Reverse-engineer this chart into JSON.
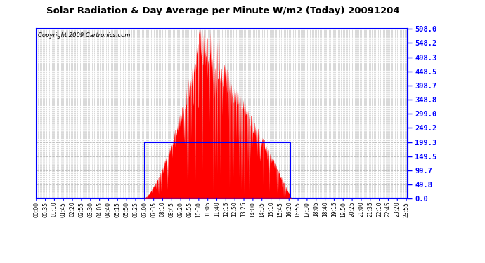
{
  "title": "Solar Radiation & Day Average per Minute W/m2 (Today) 20091204",
  "copyright_text": "Copyright 2009 Cartronics.com",
  "background_color": "#ffffff",
  "plot_bg_color": "#ffffff",
  "y_ticks": [
    0.0,
    49.8,
    99.7,
    149.5,
    199.3,
    249.2,
    299.0,
    348.8,
    398.7,
    448.5,
    498.3,
    548.2,
    598.0
  ],
  "y_min": 0.0,
  "y_max": 598.0,
  "x_min": 0,
  "x_max": 1439,
  "fill_color": "red",
  "border_color": "blue",
  "grid_color": "#bbbbbb",
  "rect_x1": 420,
  "rect_x2": 985,
  "rect_y2": 199.3,
  "solar_start": 415,
  "solar_peak": 635,
  "solar_end": 990,
  "x_tick_labels": [
    "00:00",
    "00:35",
    "01:10",
    "01:45",
    "02:20",
    "02:55",
    "03:30",
    "04:05",
    "04:40",
    "05:15",
    "05:50",
    "06:25",
    "07:00",
    "07:35",
    "08:10",
    "08:45",
    "09:20",
    "09:55",
    "10:30",
    "11:05",
    "11:40",
    "12:15",
    "12:50",
    "13:25",
    "14:00",
    "14:35",
    "15:10",
    "15:45",
    "16:20",
    "16:55",
    "17:30",
    "18:05",
    "18:40",
    "19:15",
    "19:50",
    "20:25",
    "21:00",
    "21:35",
    "22:10",
    "22:45",
    "23:20",
    "23:55"
  ],
  "x_tick_positions": [
    0,
    35,
    70,
    105,
    140,
    175,
    210,
    245,
    280,
    315,
    350,
    385,
    420,
    455,
    490,
    525,
    560,
    595,
    630,
    665,
    700,
    735,
    770,
    805,
    840,
    875,
    910,
    945,
    980,
    1015,
    1050,
    1085,
    1120,
    1155,
    1190,
    1225,
    1260,
    1295,
    1330,
    1365,
    1400,
    1435
  ],
  "x_minor_ticks": [
    0,
    5,
    10,
    15,
    20,
    25,
    30,
    35,
    40,
    45,
    50,
    55,
    60,
    65,
    70,
    75,
    80,
    85,
    90,
    95,
    100,
    105,
    110,
    115,
    120,
    125,
    130,
    135,
    140,
    145,
    150,
    155,
    160,
    165,
    170,
    175,
    180,
    185,
    190,
    195,
    200,
    205,
    210,
    215,
    220,
    225,
    230,
    235,
    240,
    245,
    250,
    255,
    260,
    265,
    270,
    275,
    280,
    285,
    290,
    295,
    300,
    305,
    310,
    315,
    320,
    325,
    330,
    335,
    340,
    345,
    350,
    355,
    360,
    365,
    370,
    375,
    380,
    385,
    390,
    395,
    400,
    405,
    410,
    415,
    420,
    425,
    430,
    435,
    440,
    445,
    450,
    455,
    460,
    465,
    470,
    475,
    480,
    485,
    490,
    495,
    500,
    505,
    510,
    515,
    520,
    525,
    530,
    535,
    540,
    545,
    550,
    555,
    560,
    565,
    570,
    575,
    580,
    585,
    590,
    595,
    600,
    605,
    610,
    615,
    620,
    625,
    630,
    635,
    640,
    645,
    650,
    655,
    660,
    665,
    670,
    675,
    680,
    685,
    690,
    695,
    700,
    705,
    710,
    715,
    720,
    725,
    730,
    735,
    740,
    745,
    750,
    755,
    760,
    765,
    770,
    775,
    780,
    785,
    790,
    795,
    800,
    805,
    810,
    815,
    820,
    825,
    830,
    835,
    840,
    845,
    850,
    855,
    860,
    865,
    870,
    875,
    880,
    885,
    890,
    895,
    900,
    905,
    910,
    915,
    920,
    925,
    930,
    935,
    940,
    945,
    950,
    955,
    960,
    965,
    970,
    975,
    980,
    985,
    990,
    995,
    1000,
    1005,
    1010,
    1015,
    1020,
    1025,
    1030,
    1035,
    1040,
    1045,
    1050,
    1055,
    1060,
    1065,
    1070,
    1075,
    1080,
    1085,
    1090,
    1095,
    1100,
    1105,
    1110,
    1115,
    1120,
    1125,
    1130,
    1135,
    1140,
    1145,
    1150,
    1155,
    1160,
    1165,
    1170,
    1175,
    1180,
    1185,
    1190,
    1195,
    1200,
    1205,
    1210,
    1215,
    1220,
    1225,
    1230,
    1235,
    1240,
    1245,
    1250,
    1255,
    1260,
    1265,
    1270,
    1275,
    1280,
    1285,
    1290,
    1295,
    1300,
    1305,
    1310,
    1315,
    1320,
    1325,
    1330,
    1335,
    1340,
    1345,
    1350,
    1355,
    1360,
    1365,
    1370,
    1375,
    1380,
    1385,
    1390,
    1395,
    1400,
    1405,
    1410,
    1415,
    1420,
    1425,
    1430,
    1435
  ]
}
